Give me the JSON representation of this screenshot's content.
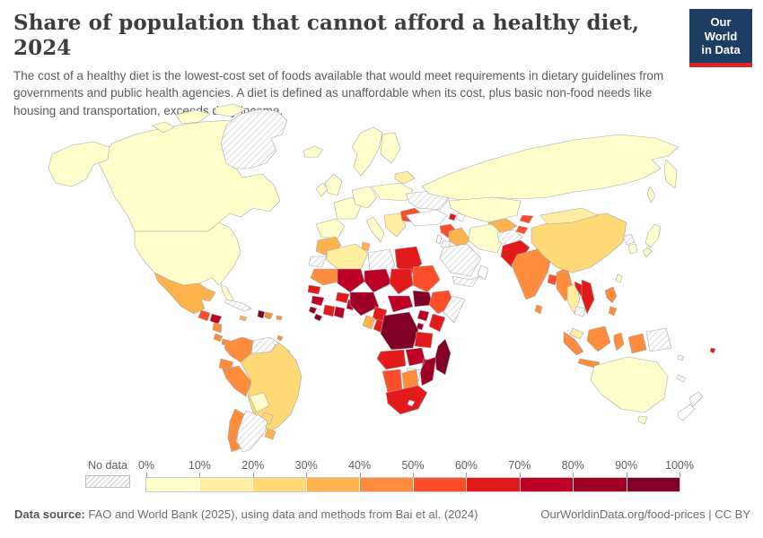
{
  "header": {
    "title": "Share of population that cannot afford a healthy diet, 2024",
    "subtitle": "The cost of a healthy diet is the lowest-cost set of foods available that would meet requirements in dietary guidelines from governments and public health agencies. A diet is defined as unaffordable when its cost, plus basic non-food needs like housing and transportation, exceeds daily income.",
    "logo": {
      "line1": "Our World",
      "line2": "in Data",
      "bg": "#1d3d63",
      "accent": "#d6262c"
    }
  },
  "footer": {
    "datasource_label": "Data source:",
    "datasource_text": " FAO and World Bank (2025), using data and methods from Bai et al. (2024)",
    "link_text": "OurWorldinData.org/food-prices | CC BY"
  },
  "colors": {
    "title": "#3d3d3d",
    "subtitle": "#5b5b5b",
    "map_border": "#a8a8a8",
    "no_data_hatch": "#cccccc"
  },
  "chart_data": {
    "type": "choropleth",
    "title": "Share of population that cannot afford a healthy diet",
    "year": "2024",
    "unit": "%",
    "no_data_label": "No data",
    "bin_labels": [
      "0%",
      "10%",
      "20%",
      "30%",
      "40%",
      "50%",
      "60%",
      "70%",
      "80%",
      "90%",
      "100%"
    ],
    "bin_colors": [
      "#FFFFCC",
      "#FFEDA0",
      "#FED976",
      "#FEB24C",
      "#FD8D3C",
      "#FC4E2A",
      "#E31A1C",
      "#BD0026",
      "#A00026",
      "#800026"
    ],
    "legend_position": "bottom",
    "regions": {
      "canada": "0-10",
      "united-states": "0-10",
      "greenland": "no-data",
      "iceland": "0-10",
      "mexico": "30-40",
      "guatemala": "50-60",
      "honduras": "70-80",
      "nicaragua": "40-50",
      "costa-rica": "40-50",
      "panama": "40-50",
      "cuba": "no-data",
      "jamaica": "30-40",
      "haiti": "90-100",
      "dominican-republic": "40-50",
      "puerto-rico": "40-50",
      "trinidad-and-tobago": "40-50",
      "colombia": "40-50",
      "venezuela": "no-data",
      "guyana": "0-10",
      "suriname": "no-data",
      "ecuador": "40-50",
      "peru": "40-50",
      "brazil": "20-30",
      "bolivia": "0-10",
      "paraguay": "20-30",
      "uruguay": "30-40",
      "argentina": "no-data",
      "chile": "40-50",
      "northern-europe": "0-10",
      "finland": "0-10",
      "united-kingdom": "0-10",
      "ireland": "0-10",
      "spain-portugal": "0-10",
      "france": "0-10",
      "central-europe": "0-10",
      "italy": "0-10",
      "balkans": "10-20",
      "eastern-europe": "0-10",
      "baltics": "10-20",
      "romania": "50-60",
      "ukraine": "no-data",
      "russia": "0-10",
      "kazakhstan": "0-10",
      "uzbekistan": "30-40",
      "turkmenistan": "no-data",
      "kyrgyzstan": "50-60",
      "tajikistan": "50-60",
      "armenia": "60-70",
      "azerbaijan": "0",
      "turkey": "0",
      "syria": "50-60",
      "israel": "0",
      "jordan": "0",
      "iraq": "30-40",
      "iran": "0-10",
      "saudi-arabia": "no-data",
      "yemen": "no-data",
      "oman": "0",
      "afghanistan": "no-data",
      "pakistan": "60-70",
      "morocco": "30-40",
      "western-sahara": "no-data",
      "algeria": "10-20",
      "tunisia": "30-40",
      "libya": "no-data",
      "egypt": "60-70",
      "mauritania": "40-50",
      "mali": "70-80",
      "niger": "70-80",
      "chad": "60-70",
      "sudan": "50-60",
      "senegal": "60-70",
      "guinea": "70-80",
      "sierra-leone": "80-90",
      "liberia": "90-100",
      "ivory-coast": "60-70",
      "ghana": "70-80",
      "burkina-faso": "60-70",
      "benin": "70-80",
      "nigeria": "80-90",
      "cameroon": "60-70",
      "central-african-republic": "70-80",
      "south-sudan": "90-100",
      "ethiopia": "50-60",
      "somalia": "no-data",
      "uganda": "70-80",
      "kenya": "60-70",
      "burundi": "80-90",
      "gabon": "30-40",
      "congo": "60-70",
      "democratic-republic-of-congo": "90-100",
      "tanzania": "60-70",
      "angola": "60-70",
      "zambia": "70-80",
      "malawi": "70-80",
      "mozambique": "80-90",
      "zimbabwe": "no-data",
      "namibia": "50-60",
      "botswana": "40-50",
      "south-africa": "60-70",
      "lesotho": "0",
      "madagascar": "90-100",
      "india": "40-50",
      "bangladesh": "50-60",
      "sri-lanka": "40-50",
      "myanmar": "40-50",
      "thailand": "10-20",
      "laos": "60-70",
      "vietnam": "60-70",
      "cambodia": "no-data",
      "malaysia": "10-20",
      "china": "20-30",
      "mongolia": "10-20",
      "north-korea": "no-data",
      "south-korea": "0-10",
      "japan": "0-10",
      "taiwan": "0-10",
      "philippines": "40-50",
      "indonesia": "40-50",
      "papua-new-guinea": "no-data",
      "solomon-islands": "no-data",
      "australia": "0-10",
      "new-zealand": "0",
      "fiji": "60-70",
      "new-caledonia": "no-data"
    }
  }
}
